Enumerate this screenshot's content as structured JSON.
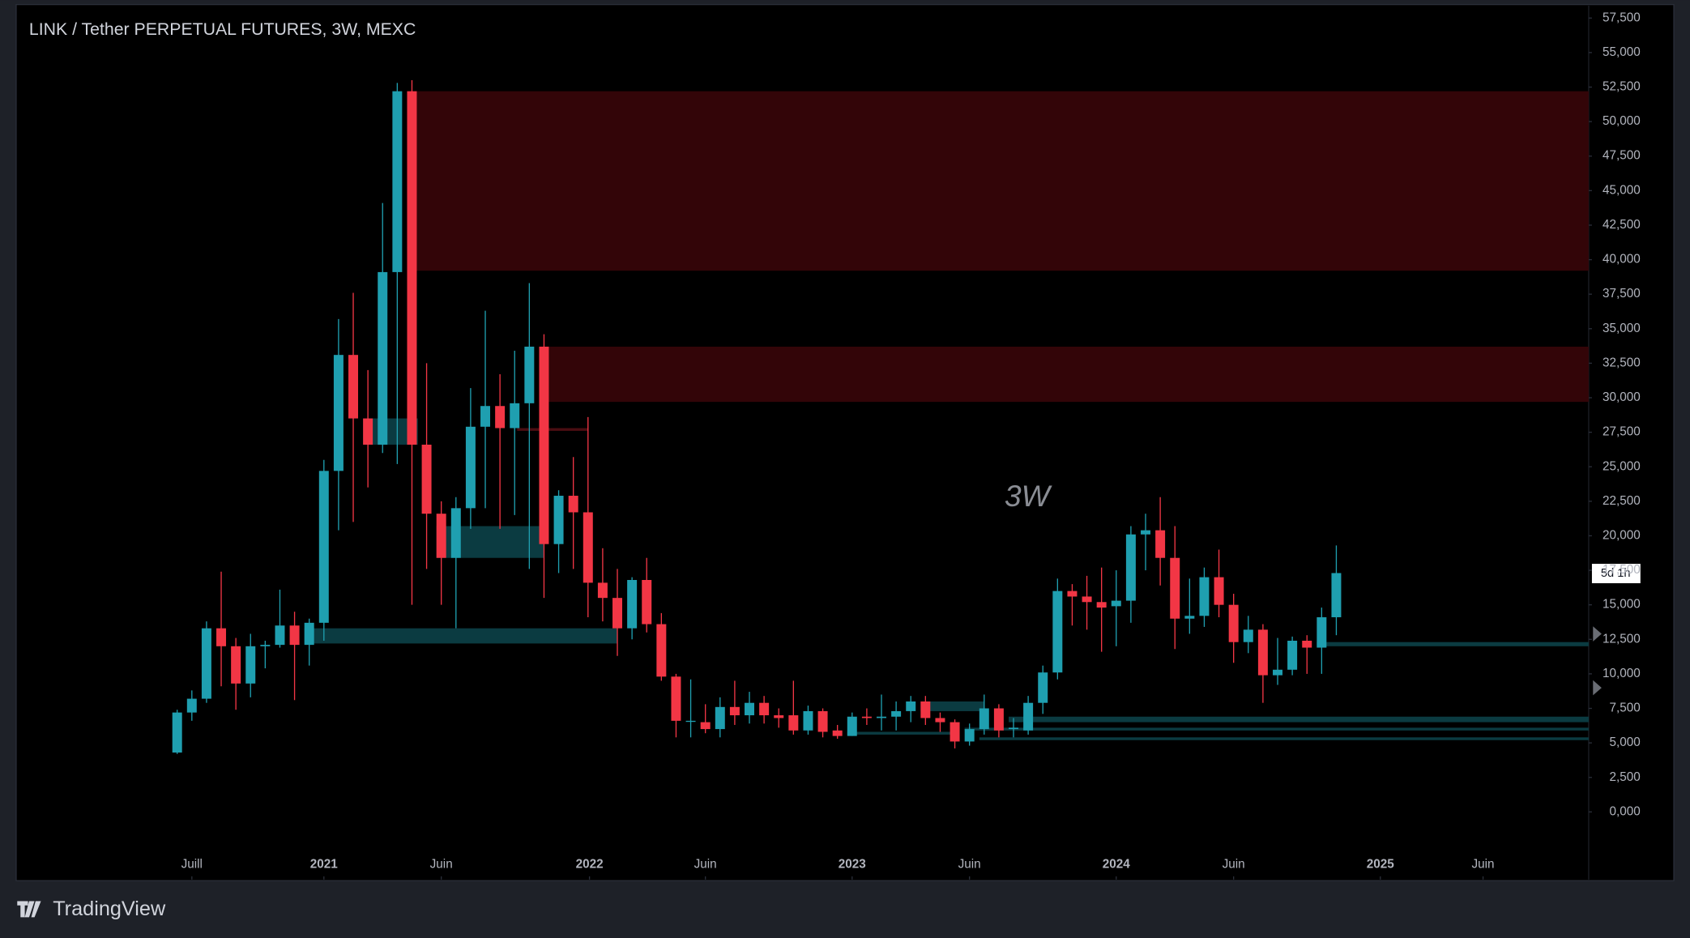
{
  "chart_data": {
    "type": "candlestick",
    "title": "LINK / Tether PERPETUAL FUTURES, 3W, MEXC",
    "annotation": "3W",
    "countdown": "5d 1h",
    "up_color": "#1f9fb0",
    "down_color": "#f23645",
    "open": [
      4.3,
      7.2,
      8.2,
      13.3,
      12.0,
      9.3,
      12.0,
      12.1,
      13.5,
      12.1,
      13.7,
      24.7,
      33.1,
      28.5,
      26.6,
      39.1,
      52.2,
      26.6,
      21.6,
      18.4,
      22.0,
      27.9,
      29.4,
      27.8,
      29.6,
      33.7,
      19.4,
      22.9,
      21.7,
      16.6,
      15.5,
      13.3,
      16.8,
      13.6,
      9.8,
      6.6,
      6.5,
      6.0,
      7.6,
      7.0,
      7.9,
      7.0,
      7.0,
      5.9,
      7.3,
      5.9,
      5.5,
      6.9,
      6.8,
      6.9,
      7.3,
      8.0,
      6.8,
      6.5,
      5.1,
      6.0,
      7.5,
      6.0,
      5.9,
      7.9,
      10.1,
      16.0,
      15.6,
      15.2,
      14.9,
      15.3,
      20.1,
      20.4,
      18.4,
      14.0,
      14.2,
      17.0,
      15.0,
      12.3,
      13.2,
      9.9,
      10.3,
      12.4,
      11.9,
      14.1
    ],
    "high": [
      7.4,
      8.8,
      13.8,
      17.4,
      12.6,
      12.9,
      12.4,
      16.1,
      14.5,
      14.0,
      25.5,
      35.7,
      37.6,
      32.0,
      44.1,
      52.8,
      53.0,
      32.5,
      22.5,
      22.8,
      30.7,
      36.3,
      31.7,
      33.4,
      38.3,
      34.6,
      23.3,
      25.7,
      28.6,
      19.1,
      17.6,
      17.0,
      18.4,
      14.4,
      10.0,
      9.6,
      7.8,
      8.3,
      9.5,
      8.7,
      8.4,
      7.5,
      9.5,
      7.7,
      7.5,
      6.3,
      7.2,
      7.5,
      8.5,
      8.0,
      8.4,
      8.4,
      7.2,
      6.7,
      6.4,
      8.5,
      7.8,
      6.8,
      8.4,
      10.6,
      16.9,
      16.5,
      17.1,
      17.7,
      17.5,
      20.7,
      21.6,
      22.8,
      20.7,
      16.9,
      17.7,
      19.0,
      15.8,
      14.2,
      13.6,
      12.6,
      12.7,
      12.8,
      14.8,
      19.3
    ],
    "low": [
      4.2,
      6.6,
      7.9,
      9.1,
      7.4,
      8.3,
      10.4,
      11.9,
      8.1,
      10.6,
      12.4,
      20.4,
      21.0,
      23.5,
      26.0,
      25.2,
      15.0,
      17.6,
      15.0,
      13.3,
      20.5,
      22.0,
      20.5,
      21.5,
      17.6,
      15.5,
      17.3,
      17.6,
      14.1,
      13.8,
      11.3,
      12.5,
      13.0,
      9.5,
      5.4,
      5.4,
      5.7,
      5.4,
      6.3,
      6.4,
      6.4,
      6.1,
      5.6,
      5.6,
      5.4,
      5.3,
      5.5,
      6.3,
      5.9,
      5.9,
      6.5,
      6.3,
      5.8,
      4.6,
      4.8,
      5.6,
      5.4,
      5.4,
      5.6,
      7.1,
      9.6,
      13.5,
      13.2,
      11.6,
      12.0,
      13.7,
      17.5,
      16.4,
      11.8,
      12.9,
      13.4,
      14.1,
      10.8,
      11.5,
      7.9,
      9.2,
      9.9,
      10.0,
      10.0,
      12.8
    ],
    "close": [
      7.2,
      8.2,
      13.3,
      12.0,
      9.3,
      12.0,
      12.1,
      13.5,
      12.1,
      13.7,
      24.7,
      33.1,
      28.5,
      26.6,
      39.1,
      52.2,
      26.6,
      21.6,
      18.4,
      22.0,
      27.9,
      29.4,
      27.8,
      29.6,
      33.7,
      19.4,
      22.9,
      21.7,
      16.6,
      15.5,
      13.3,
      16.8,
      13.6,
      9.8,
      6.6,
      6.6,
      6.0,
      7.6,
      7.0,
      7.9,
      7.0,
      6.8,
      5.9,
      7.3,
      5.8,
      5.5,
      6.9,
      6.8,
      6.9,
      7.3,
      8.0,
      6.8,
      6.5,
      5.1,
      6.0,
      7.5,
      5.9,
      6.1,
      7.9,
      10.1,
      16.0,
      15.6,
      15.2,
      14.8,
      15.3,
      20.1,
      20.4,
      18.4,
      14.0,
      14.2,
      17.0,
      15.0,
      12.3,
      13.2,
      9.9,
      10.3,
      12.4,
      11.9,
      14.1,
      17.3
    ],
    "zones": [
      {
        "start": 16,
        "low": 39.2,
        "high": 52.2,
        "color": "#330508"
      },
      {
        "start": 25,
        "low": 29.7,
        "high": 33.7,
        "color": "#330508"
      },
      {
        "start": 13,
        "end": 16.4,
        "low": 26.6,
        "high": 28.5,
        "color": "#0b3b41"
      },
      {
        "start": 18,
        "end": 25,
        "low": 18.4,
        "high": 20.7,
        "color": "#0b3b41"
      },
      {
        "start": 9,
        "end": 30,
        "low": 12.2,
        "high": 13.3,
        "color": "#0b3b41"
      },
      {
        "start": 23.5,
        "end": 28,
        "low": 27.6,
        "high": 27.8,
        "color": "#4a0d12"
      },
      {
        "start": 78,
        "low": 12.0,
        "high": 12.3,
        "color": "#0b3b41"
      },
      {
        "start": 57,
        "low": 6.5,
        "high": 6.9,
        "color": "#0b3b41"
      },
      {
        "start": 54,
        "low": 5.9,
        "high": 6.1,
        "color": "#0b3b41"
      },
      {
        "start": 55,
        "low": 5.2,
        "high": 5.4,
        "color": "#0b3b41"
      },
      {
        "start": 51,
        "end": 55,
        "low": 7.3,
        "high": 8.0,
        "color": "#0b3b41"
      },
      {
        "start": 46,
        "end": 53,
        "low": 5.6,
        "high": 5.8,
        "color": "#0b3b41"
      }
    ],
    "xlim": [
      -10.9,
      96.2
    ],
    "xticks": [
      {
        "value": 1,
        "label": "Juill"
      },
      {
        "value": 10,
        "label": "2021"
      },
      {
        "value": 18,
        "label": "Juin"
      },
      {
        "value": 28.1,
        "label": "2022"
      },
      {
        "value": 36,
        "label": "Juin"
      },
      {
        "value": 46,
        "label": "2023"
      },
      {
        "value": 54,
        "label": "Juin"
      },
      {
        "value": 64,
        "label": "2024"
      },
      {
        "value": 72,
        "label": "Juin"
      },
      {
        "value": 82,
        "label": "2025"
      },
      {
        "value": 89,
        "label": "Juin"
      }
    ],
    "ylim": [
      -4.9,
      58.4
    ],
    "yticks": [
      {
        "value": 0,
        "label": "0,000"
      },
      {
        "value": 2.5,
        "label": "2,500"
      },
      {
        "value": 5,
        "label": "5,000"
      },
      {
        "value": 7.5,
        "label": "7,500"
      },
      {
        "value": 10,
        "label": "10,000"
      },
      {
        "value": 12.5,
        "label": "12,500"
      },
      {
        "value": 15,
        "label": "15,000"
      },
      {
        "value": 17.5,
        "label": "17,500"
      },
      {
        "value": 20,
        "label": "20,000"
      },
      {
        "value": 22.5,
        "label": "22,500"
      },
      {
        "value": 25,
        "label": "25,000"
      },
      {
        "value": 27.5,
        "label": "27,500"
      },
      {
        "value": 30,
        "label": "30,000"
      },
      {
        "value": 32.5,
        "label": "32,500"
      },
      {
        "value": 35,
        "label": "35,000"
      },
      {
        "value": 37.5,
        "label": "37,500"
      },
      {
        "value": 40,
        "label": "40,000"
      },
      {
        "value": 42.5,
        "label": "42,500"
      },
      {
        "value": 45,
        "label": "45,000"
      },
      {
        "value": 47.5,
        "label": "47,500"
      },
      {
        "value": 50,
        "label": "50,000"
      },
      {
        "value": 52.5,
        "label": "52,500"
      },
      {
        "value": 55,
        "label": "55,000"
      },
      {
        "value": 57.5,
        "label": "57,500"
      }
    ]
  },
  "branding": "TradingView"
}
